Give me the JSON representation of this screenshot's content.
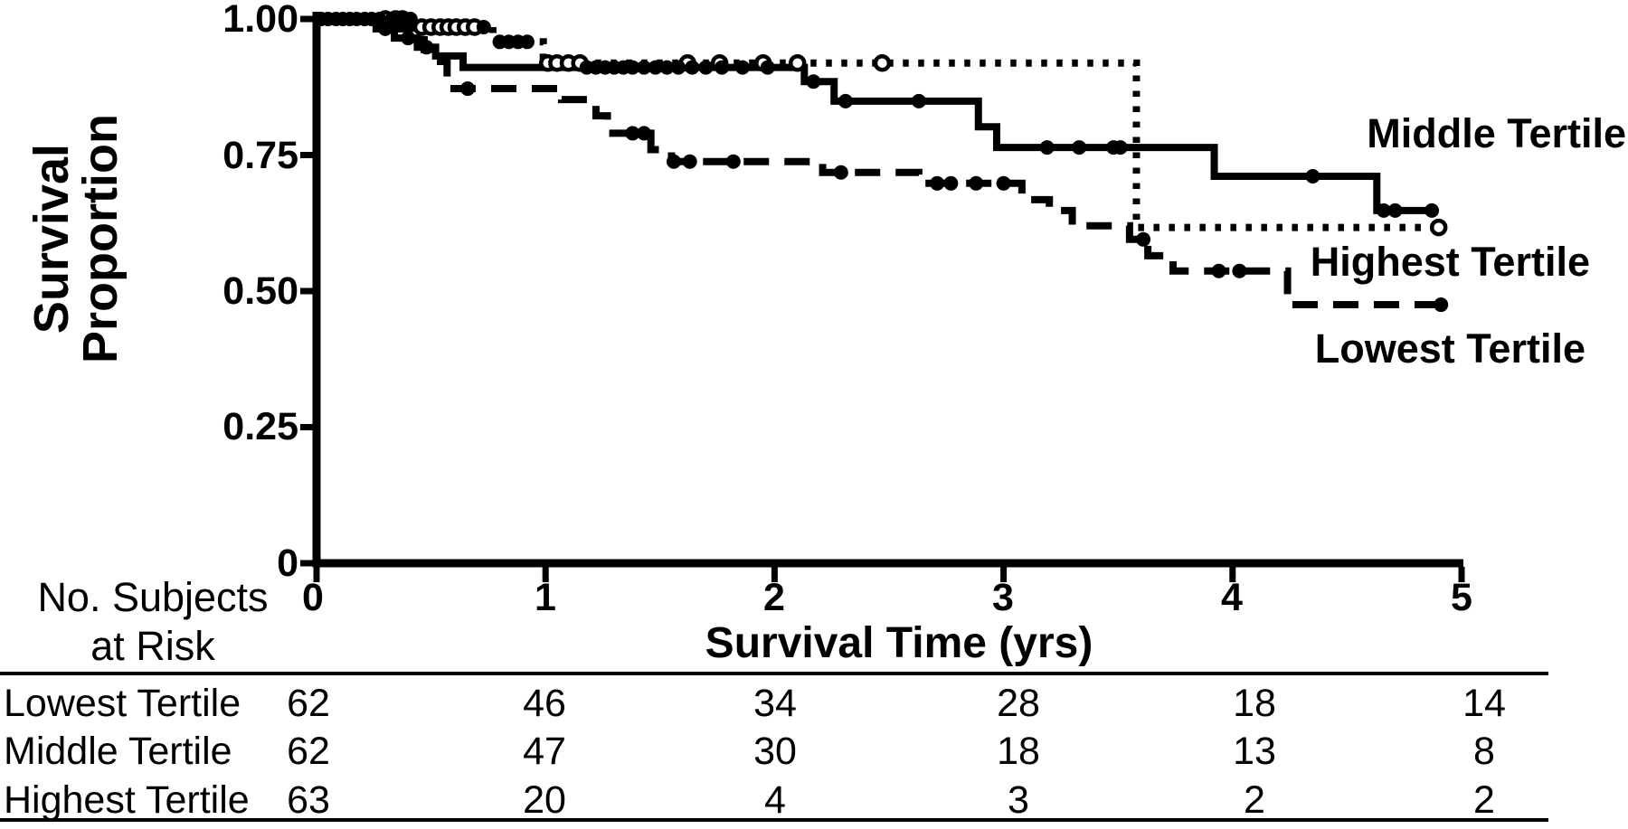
{
  "chart_data": {
    "type": "line",
    "subtype": "kaplan-meier-step-curves",
    "title": "",
    "x_axis": {
      "label": "Survival Time (yrs)",
      "ticks": [
        0,
        1,
        2,
        3,
        4,
        5
      ],
      "tick_labels": [
        "0",
        "1",
        "2",
        "3",
        "4",
        "5"
      ],
      "range": [
        0,
        5
      ],
      "grid": false
    },
    "y_axis": {
      "label": "Survival Proportion",
      "tick_values": [
        1.0,
        0.75,
        0.5,
        0.25,
        0
      ],
      "tick_labels": [
        "1.00",
        "0.75",
        "0.50",
        "0.25",
        "0"
      ],
      "range": [
        0,
        1
      ],
      "grid": false
    },
    "colors": {
      "line": "#000000",
      "background": "#ffffff"
    },
    "legend_position": "right-of-curves",
    "series": [
      {
        "name": "Middle Tertile",
        "line_style": "solid",
        "censor_marker": "filled-circle",
        "steps": [
          [
            0,
            1.0
          ],
          [
            0.26,
            0.982
          ],
          [
            0.34,
            0.965
          ],
          [
            0.44,
            0.948
          ],
          [
            0.52,
            0.932
          ],
          [
            0.64,
            0.911
          ],
          [
            2.13,
            0.885
          ],
          [
            2.26,
            0.849
          ],
          [
            2.89,
            0.802
          ],
          [
            2.97,
            0.764
          ],
          [
            3.92,
            0.711
          ],
          [
            4.63,
            0.648
          ]
        ],
        "end_t": 4.87,
        "censors": [
          [
            0.02,
            1.0,
            "f"
          ],
          [
            0.05,
            1.0,
            "f"
          ],
          [
            0.085,
            1.0,
            "f"
          ],
          [
            0.115,
            1.0,
            "f"
          ],
          [
            0.145,
            1.0,
            "f"
          ],
          [
            0.175,
            1.0,
            "f"
          ],
          [
            0.21,
            1.0,
            "f"
          ],
          [
            0.24,
            1.0,
            "f"
          ],
          [
            0.275,
            1.0,
            "f"
          ],
          [
            0.33,
            1.0,
            "f"
          ],
          [
            0.355,
            1.0,
            "f"
          ],
          [
            0.385,
            1.0,
            "f"
          ],
          [
            0.41,
            1.0,
            "f"
          ],
          [
            0.3,
            0.982,
            "f"
          ],
          [
            0.4,
            0.965,
            "f"
          ],
          [
            0.48,
            0.948,
            "f"
          ],
          [
            1.18,
            0.911,
            "f"
          ],
          [
            1.22,
            0.911,
            "f"
          ],
          [
            1.26,
            0.911,
            "f"
          ],
          [
            1.3,
            0.911,
            "f"
          ],
          [
            1.34,
            0.911,
            "f"
          ],
          [
            1.38,
            0.911,
            "f"
          ],
          [
            1.43,
            0.911,
            "f"
          ],
          [
            1.48,
            0.911,
            "f"
          ],
          [
            1.53,
            0.911,
            "f"
          ],
          [
            1.58,
            0.911,
            "f"
          ],
          [
            1.64,
            0.911,
            "f"
          ],
          [
            1.7,
            0.911,
            "f"
          ],
          [
            1.77,
            0.911,
            "f"
          ],
          [
            1.86,
            0.911,
            "f"
          ],
          [
            1.97,
            0.911,
            "f"
          ],
          [
            2.17,
            0.885,
            "f"
          ],
          [
            2.31,
            0.849,
            "f"
          ],
          [
            2.63,
            0.849,
            "f"
          ],
          [
            3.19,
            0.764,
            "f"
          ],
          [
            3.33,
            0.764,
            "f"
          ],
          [
            3.48,
            0.764,
            "f"
          ],
          [
            3.51,
            0.764,
            "f"
          ],
          [
            4.35,
            0.711,
            "f"
          ],
          [
            4.66,
            0.648,
            "f"
          ],
          [
            4.71,
            0.648,
            "f"
          ],
          [
            4.87,
            0.648,
            "f"
          ]
        ]
      },
      {
        "name": "Highest Tertile",
        "line_style": "dotted",
        "censor_marker": "open-circle",
        "steps": [
          [
            0,
            1.0
          ],
          [
            0.43,
            0.985
          ],
          [
            0.77,
            0.958
          ],
          [
            0.99,
            0.919
          ],
          [
            3.58,
            0.617
          ]
        ],
        "end_t": 4.9,
        "censors": [
          [
            0.3,
            1.0,
            "o"
          ],
          [
            0.345,
            1.0,
            "o"
          ],
          [
            0.375,
            1.0,
            "o"
          ],
          [
            0.46,
            0.985,
            "o"
          ],
          [
            0.5,
            0.985,
            "o"
          ],
          [
            0.54,
            0.985,
            "o"
          ],
          [
            0.575,
            0.985,
            "o"
          ],
          [
            0.61,
            0.985,
            "o"
          ],
          [
            0.65,
            0.985,
            "o"
          ],
          [
            0.69,
            0.985,
            "o"
          ],
          [
            0.73,
            0.985,
            "f"
          ],
          [
            0.8,
            0.958,
            "f"
          ],
          [
            0.84,
            0.958,
            "f"
          ],
          [
            0.88,
            0.958,
            "f"
          ],
          [
            0.92,
            0.958,
            "f"
          ],
          [
            1.01,
            0.919,
            "o"
          ],
          [
            1.05,
            0.919,
            "o"
          ],
          [
            1.1,
            0.919,
            "o"
          ],
          [
            1.15,
            0.919,
            "o"
          ],
          [
            1.62,
            0.919,
            "o"
          ],
          [
            1.76,
            0.919,
            "o"
          ],
          [
            1.95,
            0.919,
            "o"
          ],
          [
            2.1,
            0.919,
            "o"
          ],
          [
            2.47,
            0.919,
            "o"
          ],
          [
            4.9,
            0.617,
            "o"
          ]
        ]
      },
      {
        "name": "Lowest Tertile",
        "line_style": "dashed",
        "censor_marker": "filled-circle",
        "steps": [
          [
            0,
            1.0
          ],
          [
            0.3,
            0.982
          ],
          [
            0.41,
            0.962
          ],
          [
            0.47,
            0.944
          ],
          [
            0.52,
            0.922
          ],
          [
            0.57,
            0.872
          ],
          [
            1.07,
            0.852
          ],
          [
            1.22,
            0.822
          ],
          [
            1.27,
            0.79
          ],
          [
            1.46,
            0.76
          ],
          [
            1.55,
            0.738
          ],
          [
            2.21,
            0.718
          ],
          [
            2.63,
            0.698
          ],
          [
            3.08,
            0.668
          ],
          [
            3.2,
            0.648
          ],
          [
            3.3,
            0.62
          ],
          [
            3.55,
            0.595
          ],
          [
            3.63,
            0.565
          ],
          [
            3.74,
            0.537
          ],
          [
            4.24,
            0.475
          ]
        ],
        "end_t": 4.91,
        "censors": [
          [
            0.66,
            0.872,
            "f"
          ],
          [
            1.38,
            0.79,
            "f"
          ],
          [
            1.43,
            0.79,
            "f"
          ],
          [
            1.56,
            0.738,
            "f"
          ],
          [
            1.63,
            0.738,
            "f"
          ],
          [
            1.82,
            0.738,
            "f"
          ],
          [
            2.29,
            0.718,
            "f"
          ],
          [
            2.71,
            0.698,
            "f"
          ],
          [
            2.77,
            0.698,
            "f"
          ],
          [
            2.88,
            0.698,
            "f"
          ],
          [
            3.0,
            0.698,
            "f"
          ],
          [
            3.61,
            0.595,
            "f"
          ],
          [
            3.94,
            0.537,
            "f"
          ],
          [
            4.03,
            0.537,
            "f"
          ],
          [
            4.91,
            0.475,
            "f"
          ]
        ]
      }
    ],
    "risk_table": {
      "header_line1": "No. Subjects",
      "header_line2": "at Risk",
      "time_points": [
        0,
        1,
        2,
        3,
        4,
        5
      ],
      "rows": [
        {
          "label": "Lowest Tertile",
          "counts": [
            62,
            46,
            34,
            28,
            18,
            14
          ]
        },
        {
          "label": "Middle Tertile",
          "counts": [
            62,
            47,
            30,
            18,
            13,
            8
          ]
        },
        {
          "label": "Highest Tertile",
          "counts": [
            63,
            20,
            4,
            3,
            2,
            2
          ]
        }
      ]
    }
  }
}
